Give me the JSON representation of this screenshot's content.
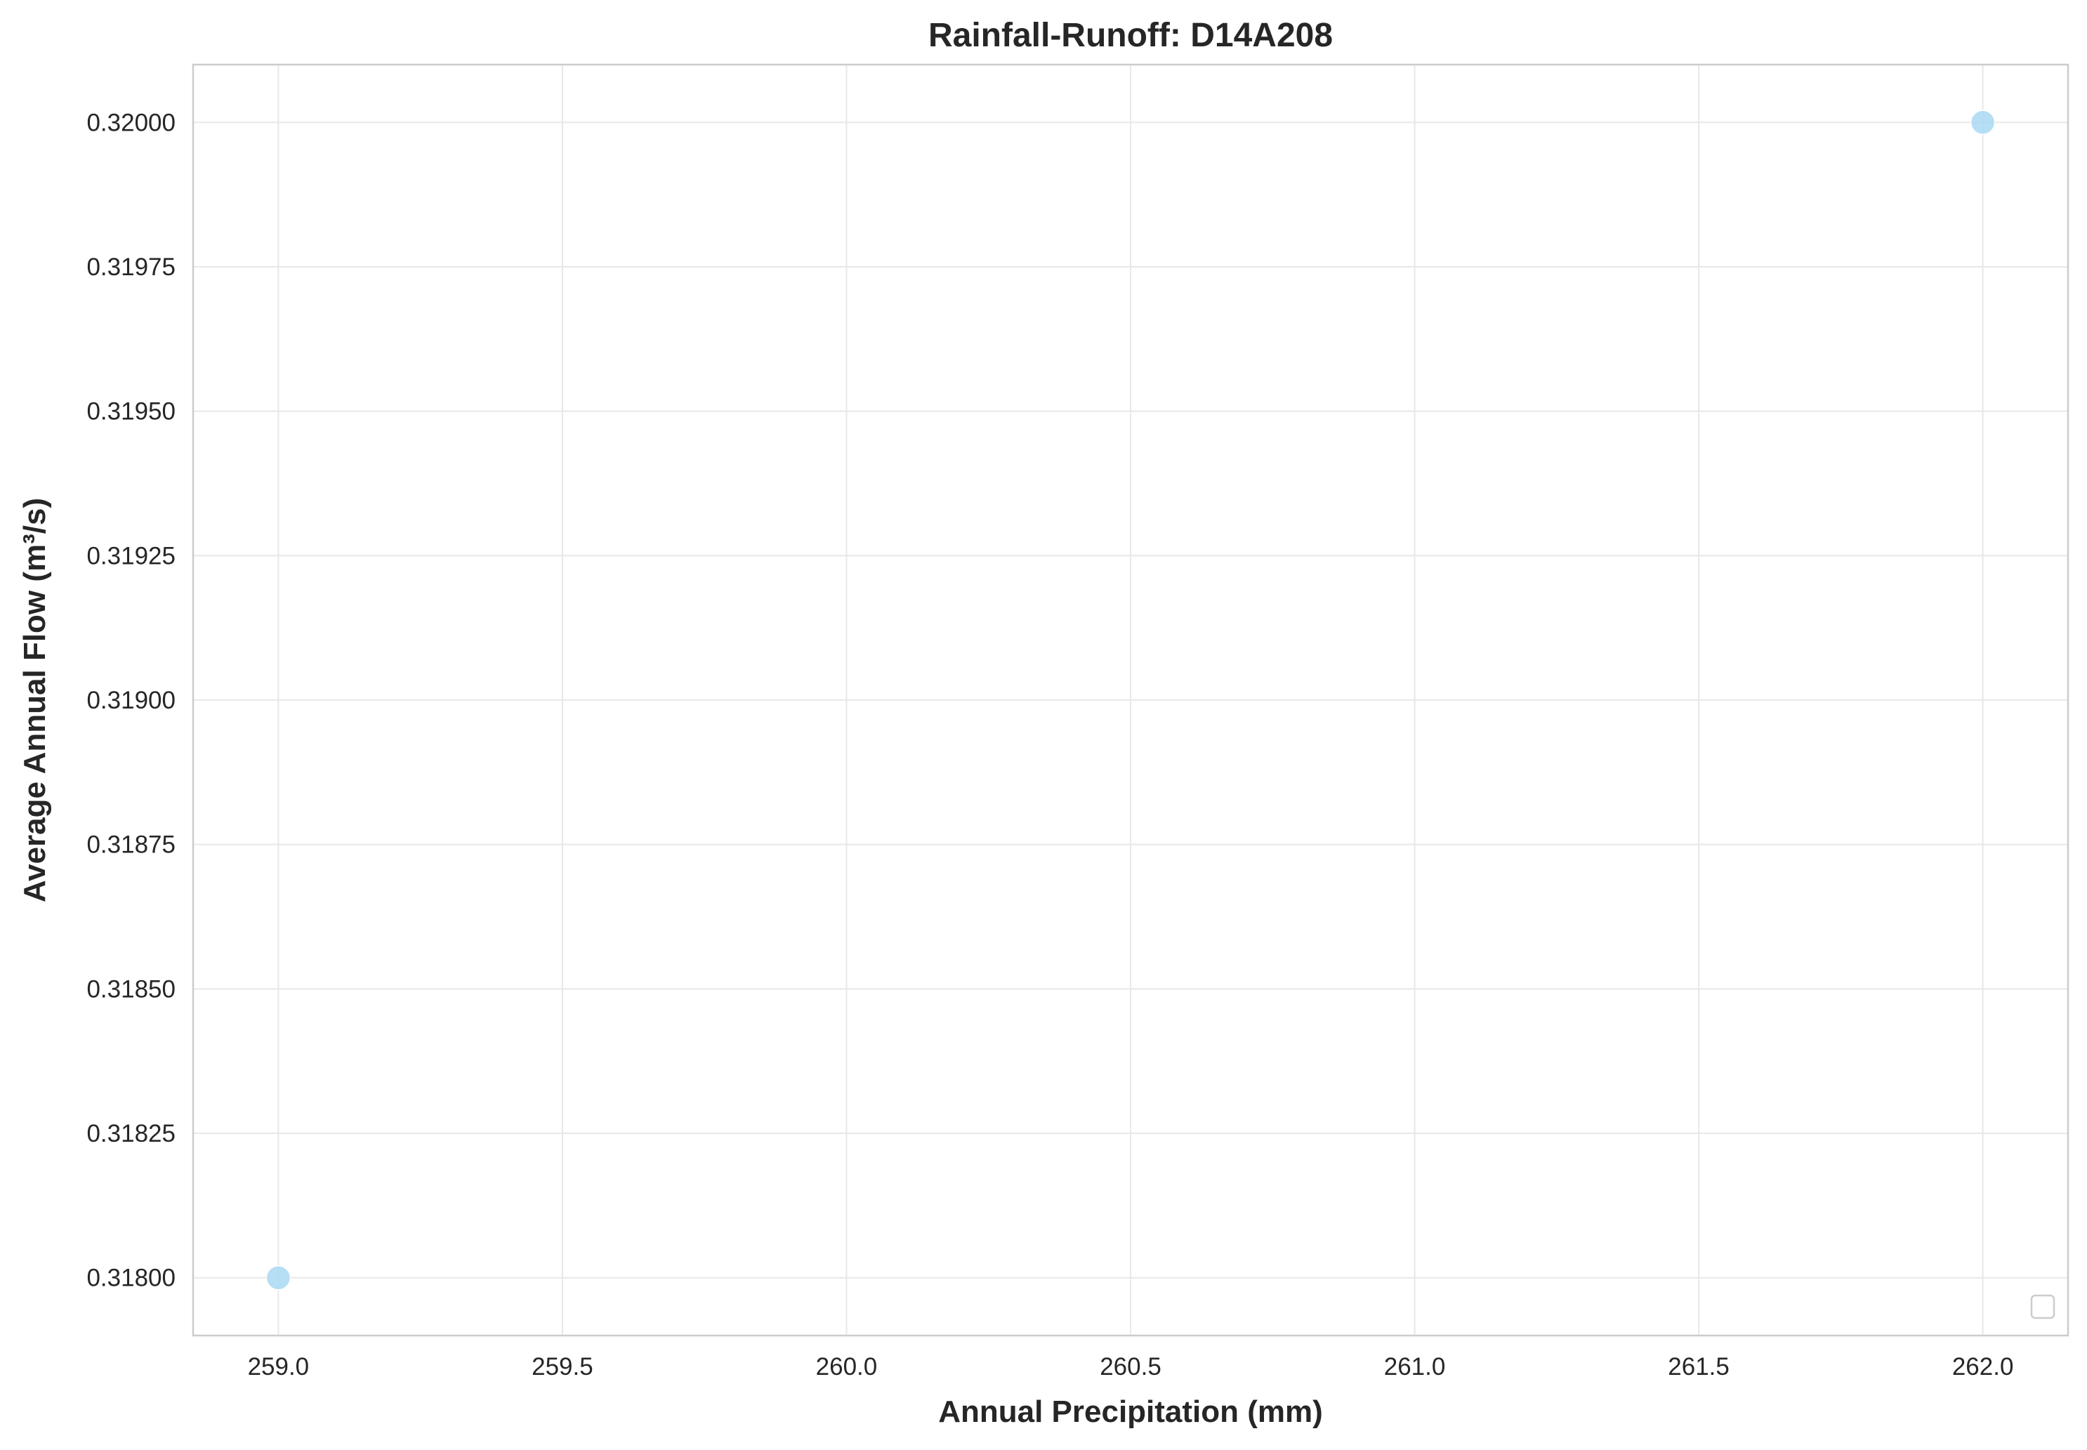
{
  "chart_data": {
    "type": "scatter",
    "title": "Rainfall-Runoff: D14A208",
    "xlabel": "Annual Precipitation (mm)",
    "ylabel": "Average Annual Flow (m³/s)",
    "xlim": [
      258.85,
      262.15
    ],
    "ylim": [
      0.3179,
      0.3201
    ],
    "x_ticks": [
      259.0,
      259.5,
      260.0,
      260.5,
      261.0,
      261.5,
      262.0
    ],
    "x_tick_labels": [
      "259.0",
      "259.5",
      "260.0",
      "260.5",
      "261.0",
      "261.5",
      "262.0"
    ],
    "y_ticks": [
      0.318,
      0.31825,
      0.3185,
      0.31875,
      0.319,
      0.31925,
      0.3195,
      0.31975,
      0.32
    ],
    "y_tick_labels": [
      "0.31800",
      "0.31825",
      "0.31850",
      "0.31875",
      "0.31900",
      "0.31925",
      "0.31950",
      "0.31975",
      "0.32000"
    ],
    "grid": true,
    "legend": {
      "placement": "lower-right",
      "entries": []
    },
    "series": [
      {
        "points": [
          {
            "x": 259.0,
            "y": 0.318
          },
          {
            "x": 262.0,
            "y": 0.32
          }
        ],
        "color": "#a9d8f2"
      }
    ]
  }
}
